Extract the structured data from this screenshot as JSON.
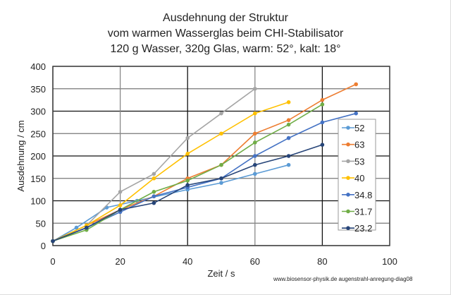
{
  "chart_data": {
    "type": "line",
    "title": [
      "Ausdehnung der Struktur",
      "vom warmen Wasserglas  beim CHI-Stabilisator",
      "120 g Wasser, 320g Glas, warm: 52°, kalt: 18°"
    ],
    "xlabel": "Zeit / s",
    "ylabel": "Ausdehnung / cm",
    "xlim": [
      0,
      100
    ],
    "ylim": [
      0,
      400
    ],
    "xticks": [
      0,
      20,
      40,
      60,
      80,
      100
    ],
    "yticks": [
      0,
      50,
      100,
      150,
      200,
      250,
      300,
      350,
      400
    ],
    "grid": true,
    "legend": "right",
    "series": [
      {
        "name": "52",
        "color": "#5b9bd5",
        "x": [
          0,
          7,
          16,
          25,
          40,
          50,
          60,
          70
        ],
        "y": [
          10,
          40,
          85,
          100,
          125,
          140,
          160,
          180
        ]
      },
      {
        "name": "63",
        "color": "#ed7d31",
        "x": [
          0,
          10,
          20,
          30,
          40,
          50,
          60,
          70,
          80,
          90
        ],
        "y": [
          10,
          45,
          80,
          110,
          150,
          180,
          250,
          280,
          325,
          360
        ]
      },
      {
        "name": "53",
        "color": "#a5a5a5",
        "x": [
          0,
          10,
          20,
          30,
          40,
          50,
          60
        ],
        "y": [
          10,
          45,
          120,
          160,
          240,
          295,
          350
        ]
      },
      {
        "name": "40",
        "color": "#ffc000",
        "x": [
          0,
          10,
          20,
          30,
          40,
          50,
          60,
          70
        ],
        "y": [
          10,
          45,
          90,
          150,
          205,
          250,
          295,
          320
        ]
      },
      {
        "name": "34.8",
        "color": "#4472c4",
        "x": [
          0,
          10,
          20,
          30,
          40,
          50,
          60,
          70,
          80,
          90
        ],
        "y": [
          10,
          40,
          75,
          110,
          130,
          150,
          200,
          240,
          275,
          295
        ]
      },
      {
        "name": "31.7",
        "color": "#70ad47",
        "x": [
          0,
          10,
          20,
          30,
          40,
          50,
          60,
          70,
          80
        ],
        "y": [
          10,
          35,
          80,
          120,
          145,
          180,
          230,
          270,
          315
        ]
      },
      {
        "name": "23.2",
        "color": "#264478",
        "x": [
          0,
          10,
          20,
          30,
          40,
          50,
          60,
          70,
          80
        ],
        "y": [
          10,
          40,
          80,
          95,
          135,
          150,
          180,
          200,
          225
        ]
      }
    ]
  },
  "credit": "www.biosensor-physik.de augenstrahl-anregung-diag08"
}
